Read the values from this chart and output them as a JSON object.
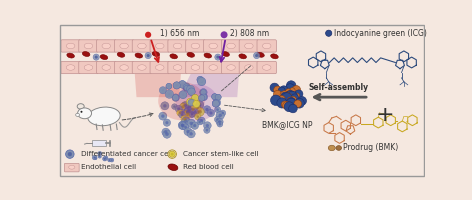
{
  "bg_color": "#f5e8e0",
  "border_color": "#999999",
  "label_656": "1) 656 nm",
  "label_808": "2) 808 nm",
  "label_icg": "Indocyanine green (ICG)",
  "label_bmk": "Prodrug (BMK)",
  "label_np": "BMK@ICG NP",
  "label_assembly": "Self-assembly",
  "icg_color": "#2c4a7c",
  "bmk_color_left": "#c87848",
  "bmk_color_right": "#c8a820",
  "np_blue_color": "#2c4a8c",
  "np_orange_color": "#c87030",
  "np_gold_color": "#d4a040",
  "arrow_color": "#555555",
  "red_laser_color": "#cc2020",
  "purple_laser_color": "#7020a0",
  "cancer_cell_color": "#8090b0",
  "cancer_cell_edge": "#5566aa",
  "stem_cell_color": "#e0d048",
  "stem_cell_edge": "#a89020",
  "blood_cell_color": "#991010",
  "endothelial_color": "#f0c8c0",
  "endothelial_edge": "#c09090",
  "vessel_middle_color": "#f5e8e0",
  "text_color": "#333333"
}
